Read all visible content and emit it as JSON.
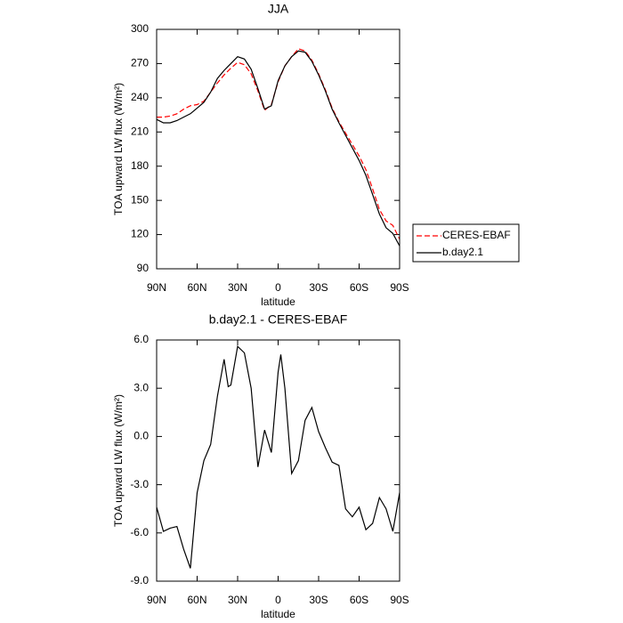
{
  "chart_data": [
    {
      "type": "line",
      "title": "JJA",
      "x_label": "latitude",
      "y_label": "TOA upward LW flux (W/m²)",
      "x": [
        90,
        85,
        80,
        75,
        70,
        65,
        60,
        55,
        50,
        45,
        40,
        35,
        30,
        25,
        20,
        15,
        10,
        5,
        0,
        -5,
        -10,
        -15,
        -20,
        -25,
        -30,
        -35,
        -40,
        -45,
        -50,
        -55,
        -60,
        -65,
        -70,
        -75,
        -80,
        -85,
        -90
      ],
      "series": [
        {
          "name": "CERES-EBAF",
          "color": "#ff0000",
          "dash": true,
          "values": [
            223,
            223,
            224,
            226,
            230,
            233,
            234,
            237,
            245,
            253,
            260,
            266,
            271,
            269,
            261,
            246,
            229,
            234,
            254,
            268,
            276,
            283,
            281,
            273,
            261,
            247,
            231,
            219,
            209,
            199,
            189,
            177,
            160,
            142,
            132,
            128,
            116
          ]
        },
        {
          "name": "b.day2.1",
          "color": "#000000",
          "dash": false,
          "values": [
            221,
            218,
            218,
            220,
            223,
            226,
            231,
            236,
            245,
            257,
            264,
            270,
            276,
            274,
            265,
            248,
            230,
            233,
            255,
            268,
            276,
            281,
            280,
            272,
            260,
            246,
            230,
            218,
            207,
            196,
            185,
            172,
            155,
            138,
            126,
            121,
            110
          ]
        }
      ],
      "xlim": [
        90,
        -90
      ],
      "xticks": [
        {
          "value": 90,
          "label": "90N"
        },
        {
          "value": 60,
          "label": "60N"
        },
        {
          "value": 30,
          "label": "30N"
        },
        0,
        {
          "value": -30,
          "label": "30S"
        },
        {
          "value": -60,
          "label": "60S"
        },
        {
          "value": -90,
          "label": "90S"
        }
      ],
      "ylim": [
        90,
        300
      ],
      "yticks": [
        90,
        120,
        150,
        180,
        210,
        240,
        270,
        300
      ],
      "legend": "right"
    },
    {
      "type": "line",
      "title": "b.day2.1 - CERES-EBAF",
      "x_label": "latitude",
      "y_label": "TOA upward LW flux (W/m²)",
      "x": [
        90,
        85,
        80,
        75,
        70,
        65,
        60,
        55,
        50,
        45,
        40,
        37,
        35,
        30,
        25,
        20,
        15,
        10,
        5,
        0,
        -2,
        -5,
        -10,
        -15,
        -20,
        -25,
        -30,
        -35,
        -40,
        -45,
        -50,
        -55,
        -60,
        -65,
        -70,
        -75,
        -80,
        -85,
        -90
      ],
      "series": [
        {
          "color": "#000000",
          "dash": false,
          "values": [
            -4.4,
            -5.9,
            -5.7,
            -5.6,
            -7.0,
            -8.2,
            -3.5,
            -1.5,
            -0.5,
            2.5,
            4.8,
            3.1,
            3.2,
            5.6,
            5.2,
            3.0,
            -1.9,
            0.4,
            -1.0,
            4.0,
            5.1,
            3.0,
            -2.3,
            -1.5,
            1.0,
            1.8,
            0.3,
            -0.7,
            -1.6,
            -1.8,
            -4.5,
            -5.0,
            -4.4,
            -5.8,
            -5.4,
            -3.8,
            -4.5,
            -5.9,
            -3.5
          ]
        }
      ],
      "xlim": [
        90,
        -90
      ],
      "xticks": [
        {
          "value": 90,
          "label": "90N"
        },
        {
          "value": 60,
          "label": "60N"
        },
        {
          "value": 30,
          "label": "30N"
        },
        0,
        {
          "value": -30,
          "label": "30S"
        },
        {
          "value": -60,
          "label": "60S"
        },
        {
          "value": -90,
          "label": "90S"
        }
      ],
      "ylim": [
        -9,
        6
      ],
      "yticks": [
        {
          "value": -9,
          "label": "-9.0"
        },
        {
          "value": -6,
          "label": "-6.0"
        },
        {
          "value": -3,
          "label": "-3.0"
        },
        {
          "value": 0,
          "label": "0.0"
        },
        {
          "value": 3,
          "label": "3.0"
        },
        {
          "value": 6,
          "label": "6.0"
        }
      ]
    }
  ]
}
